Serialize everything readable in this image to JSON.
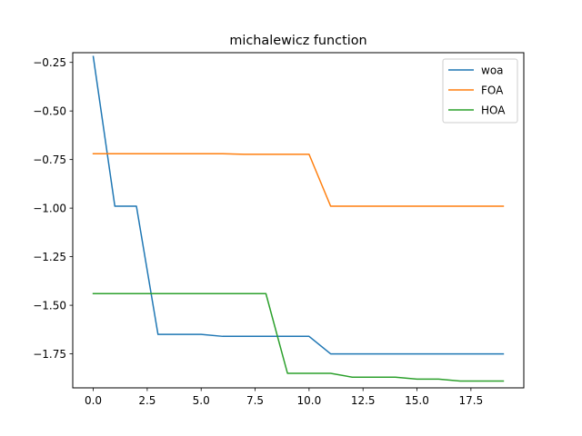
{
  "chart_data": {
    "type": "line",
    "title": "michalewicz function",
    "xlabel": "",
    "ylabel": "",
    "xlim": [
      -0.95,
      19.95
    ],
    "ylim": [
      -1.925,
      -0.2
    ],
    "xticks": [
      0.0,
      2.5,
      5.0,
      7.5,
      10.0,
      12.5,
      15.0,
      17.5
    ],
    "xtick_labels": [
      "0.0",
      "2.5",
      "5.0",
      "7.5",
      "10.0",
      "12.5",
      "15.0",
      "17.5"
    ],
    "yticks": [
      -0.25,
      -0.5,
      -0.75,
      -1.0,
      -1.25,
      -1.5,
      -1.75
    ],
    "ytick_labels": [
      "−0.25",
      "−0.50",
      "−0.75",
      "−1.00",
      "−1.25",
      "−1.50",
      "−1.75"
    ],
    "grid": false,
    "legend_position": "top-right",
    "x": [
      0,
      1,
      2,
      3,
      4,
      5,
      6,
      7,
      8,
      9,
      10,
      11,
      12,
      13,
      14,
      15,
      16,
      17,
      18,
      19
    ],
    "series": [
      {
        "name": "woa",
        "color": "#1f77b4",
        "values": [
          -0.22,
          -0.99,
          -0.99,
          -1.65,
          -1.65,
          -1.65,
          -1.66,
          -1.66,
          -1.66,
          -1.66,
          -1.66,
          -1.75,
          -1.75,
          -1.75,
          -1.75,
          -1.75,
          -1.75,
          -1.75,
          -1.75,
          -1.75
        ]
      },
      {
        "name": "FOA",
        "color": "#ff7f0e",
        "values": [
          -0.72,
          -0.72,
          -0.72,
          -0.72,
          -0.72,
          -0.72,
          -0.72,
          -0.723,
          -0.723,
          -0.723,
          -0.723,
          -0.99,
          -0.99,
          -0.99,
          -0.99,
          -0.99,
          -0.99,
          -0.99,
          -0.99,
          -0.99
        ]
      },
      {
        "name": "HOA",
        "color": "#2ca02c",
        "values": [
          -1.44,
          -1.44,
          -1.44,
          -1.44,
          -1.44,
          -1.44,
          -1.44,
          -1.44,
          -1.44,
          -1.85,
          -1.85,
          -1.85,
          -1.87,
          -1.87,
          -1.87,
          -1.88,
          -1.88,
          -1.89,
          -1.89,
          -1.89
        ]
      }
    ]
  }
}
